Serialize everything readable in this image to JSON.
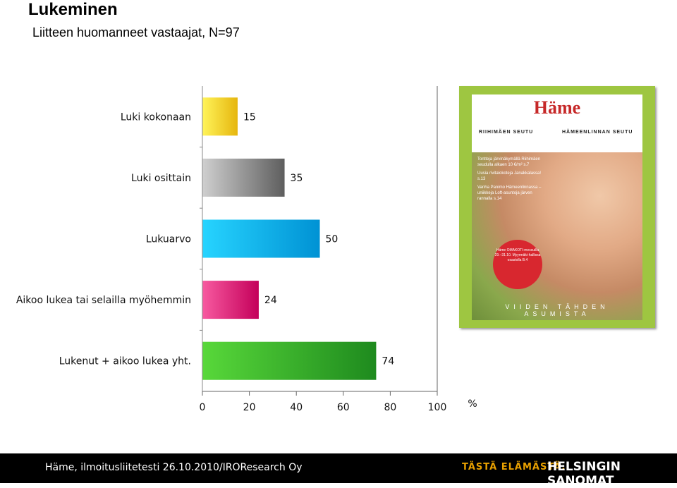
{
  "title": "Lukeminen",
  "subtitle": "Liitteen huomanneet vastaajat, N=97",
  "chart_data": {
    "type": "bar",
    "orientation": "horizontal",
    "categories": [
      "Luki kokonaan",
      "Luki osittain",
      "Lukuarvo",
      "Aikoo lukea tai selailla myöhemmin",
      "Lukenut + aikoo lukea yht."
    ],
    "values": [
      15,
      35,
      50,
      24,
      74
    ],
    "value_labels": [
      "15",
      "35",
      "50",
      "24",
      "74"
    ],
    "xlim": [
      0,
      100
    ],
    "ticks": [
      "0",
      "20",
      "40",
      "60",
      "80",
      "100"
    ],
    "unit": "%",
    "bar_colors": [
      [
        "#fff45a",
        "#e6b60e"
      ],
      [
        "#cfcfcf",
        "#5e5e5e"
      ],
      [
        "#27d4ff",
        "#0092d4"
      ],
      [
        "#f75aa0",
        "#c4005a"
      ],
      [
        "#58d83a",
        "#1e8a1e"
      ]
    ],
    "grid": false
  },
  "cover": {
    "logo": "Häme",
    "region1": "RIIHIMÄEN SEUTU",
    "region2": "HÄMEENLINNAN SEUTU",
    "headlines": [
      "Tontteja järvinäkymällä Riihimäen seudulla alkaen 10 €/m² s.7",
      "Uusia rivitalokoteja Janakkalassa! s.13",
      "Vanha Panimo Hämeenlinnassa – uniikkeja Loft-asuntoja järven rannalla s.14"
    ],
    "circle": "Häme OMAKOTI-messuilla 29.–31.10. Myyrmäki-hallissa osastolla B.4",
    "bottom": "VIIDEN TÄHDEN ASUMISTA"
  },
  "footer": {
    "text": "Häme, ilmoitusliitetesti 26.10.2010/IROResearch Oy",
    "slogan": "TÄSTÄ ELÄMÄSTÄ.",
    "brand": "HELSINGIN SANOMAT"
  }
}
